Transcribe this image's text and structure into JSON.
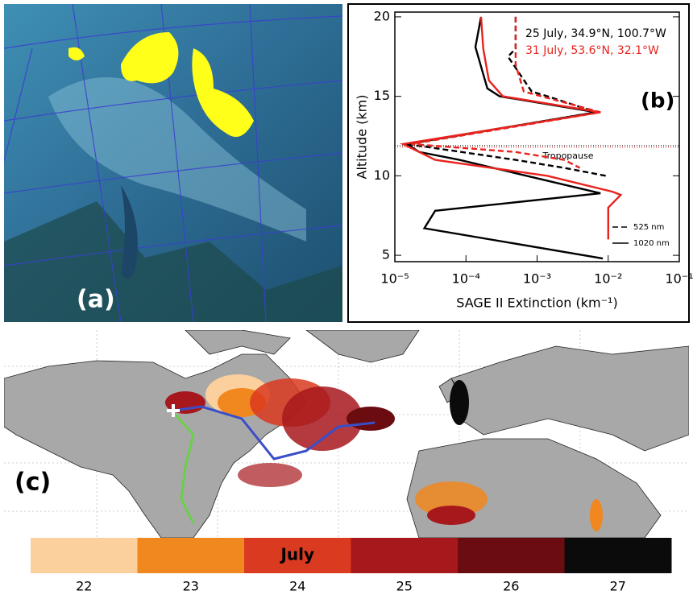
{
  "panel_a": {
    "label": "(a)"
  },
  "chart_data": {
    "type": "profile",
    "panel_label": "(b)",
    "xlabel": "SAGE II Extinction (km⁻¹)",
    "ylabel": "Altitude (km)",
    "log_x": true,
    "xlim": [
      1e-05,
      0.1
    ],
    "xticks": [
      {
        "value": 1e-05,
        "label": "10⁻⁵"
      },
      {
        "value": 0.0001,
        "label": "10⁻⁴"
      },
      {
        "value": 0.001,
        "label": "10⁻³"
      },
      {
        "value": 0.01,
        "label": "10⁻²"
      },
      {
        "value": 0.1,
        "label": "10⁻¹"
      }
    ],
    "ylim": [
      4.6,
      20.3
    ],
    "yticks": [
      5,
      10,
      15,
      20
    ],
    "tropopause": {
      "label": "Tropopause",
      "value": 11.9
    },
    "line_styles": [
      {
        "label": "525 nm",
        "style": "dashed"
      },
      {
        "label": "1020 nm",
        "style": "solid"
      }
    ],
    "profiles": [
      {
        "name": "25 July, 34.9°N, 100.7°W",
        "color": "#000000",
        "lines": [
          {
            "style": "dashed",
            "x": [
              0.0005,
              0.0005,
              0.00039,
              0.00084,
              0.0014,
              0.0068,
              1.48e-05,
              0.0005,
              0.0024,
              0.0093
            ],
            "y": [
              20,
              18,
              17.5,
              15.3,
              15,
              14,
              12,
              11,
              10.5,
              10
            ]
          },
          {
            "style": "solid",
            "x": [
              0.000163,
              0.000136,
              0.0002,
              0.000297,
              0.0068,
              1.48e-05,
              2.2e-05,
              8.1e-05,
              0.0078,
              3.7e-05,
              2.6e-05,
              0.0084
            ],
            "y": [
              20,
              18.1,
              15.5,
              15,
              14,
              12,
              11.5,
              11,
              8.9,
              7.8,
              6.7,
              4.8
            ]
          }
        ]
      },
      {
        "name": "31 July, 53.6°N, 32.1°W",
        "color": "#e8231e",
        "lines": [
          {
            "style": "dashed",
            "x": [
              0.0005,
              0.0005,
              0.00065,
              0.0078,
              1.7e-05,
              0.0005,
              0.0024,
              0.004
            ],
            "y": [
              20,
              17,
              15.3,
              14,
              12,
              11.5,
              11,
              10.5
            ]
          },
          {
            "style": "solid",
            "x": [
              0.000163,
              0.000175,
              0.00021,
              0.00033,
              0.0078,
              1.3e-05,
              3.7e-05,
              0.0014,
              0.0115,
              0.015,
              0.01,
              0.01
            ],
            "y": [
              20,
              18,
              16,
              15,
              14,
              12,
              11,
              10,
              9,
              8.8,
              8,
              6
            ]
          }
        ]
      }
    ]
  },
  "panel_c": {
    "label": "(c)",
    "colorbar": {
      "label": "July",
      "categories": [
        "22",
        "23",
        "24",
        "25",
        "26",
        "27"
      ],
      "colors": [
        "#fbd09d",
        "#f1871f",
        "#da3a20",
        "#a7181d",
        "#6a0c10",
        "#0b0b0b"
      ]
    }
  }
}
